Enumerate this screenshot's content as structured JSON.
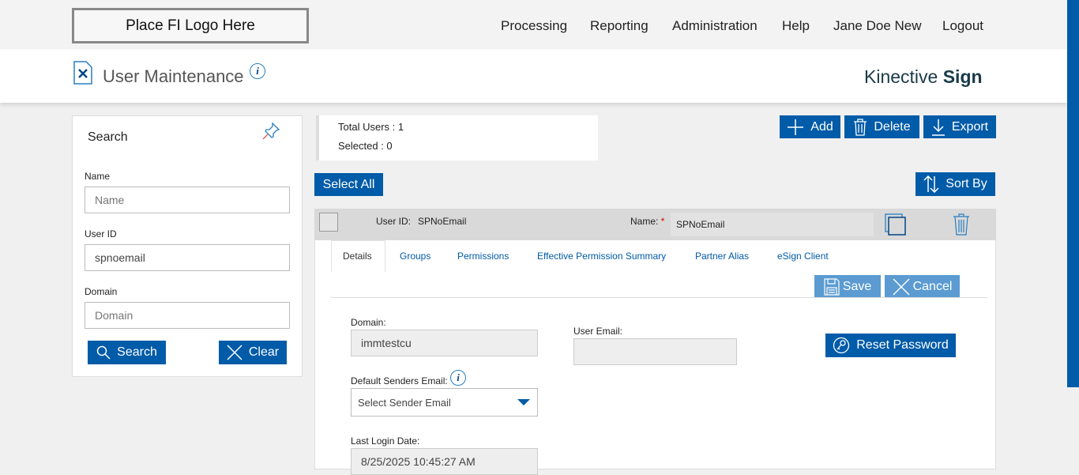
{
  "topbar": {
    "logo": "Place FI Logo Here",
    "nav": [
      "Processing",
      "Reporting",
      "Administration",
      "Help",
      "Jane Doe New",
      "Logout"
    ]
  },
  "header": {
    "title": "User Maintenance",
    "brand_regular": "Kinective ",
    "brand_bold": "Sign"
  },
  "search": {
    "title": "Search",
    "name_label": "Name",
    "name_placeholder": "Name",
    "userid_label": "User ID",
    "userid_value": "spnoemail",
    "domain_label": "Domain",
    "domain_placeholder": "Domain",
    "search_btn": "Search",
    "clear_btn": "Clear"
  },
  "stats": {
    "total": "Total Users : 1",
    "selected": "Selected : 0"
  },
  "toolbar": {
    "add": "Add",
    "delete": "Delete",
    "export": "Export",
    "select_all": "Select All",
    "sort_by": "Sort By"
  },
  "user": {
    "userid_label": "User ID:",
    "userid_value": "SPNoEmail",
    "name_label": "Name:",
    "required": "*",
    "name_value": "SPNoEmail",
    "tabs": [
      "Details",
      "Groups",
      "Permissions",
      "Effective Permission Summary",
      "Partner Alias",
      "eSign Client"
    ],
    "save": "Save",
    "cancel": "Cancel",
    "domain_label": "Domain:",
    "domain_value": "immtestcu",
    "email_label": "User Email:",
    "email_value": "",
    "reset_password": "Reset Password",
    "senders_label": "Default Senders Email:",
    "senders_value": "Select Sender Email",
    "last_login_label": "Last Login Date:",
    "last_login_value": "8/25/2025 10:45:27 AM"
  },
  "colors": {
    "primary": "#005ba8",
    "disabled": "#5b9bd1"
  }
}
